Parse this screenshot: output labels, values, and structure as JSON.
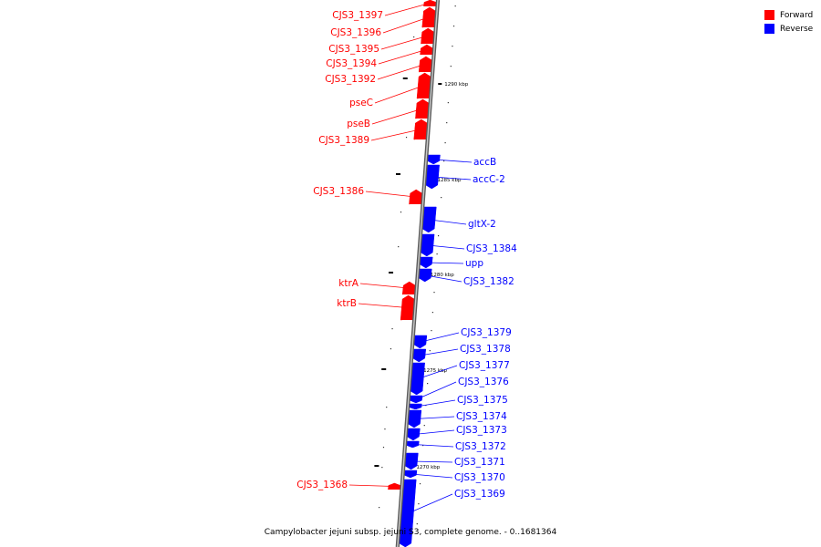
{
  "colors": {
    "forward": "#ff0000",
    "reverse": "#0000ff",
    "backbone": "#888888",
    "tick": "#000000"
  },
  "legend": {
    "forward_label": "Forward",
    "reverse_label": "Reverse"
  },
  "caption": "Campylobacter jejuni subsp. jejuni S3, complete genome. - 0..1681364",
  "scale_labels": [
    "1290 kbp",
    "1285 kbp",
    "1280 kbp",
    "1275 kbp",
    "1270 kbp"
  ],
  "genes": [
    {
      "label": "CJS3_1397",
      "strand": "forward"
    },
    {
      "label": "CJS3_1396",
      "strand": "forward"
    },
    {
      "label": "CJS3_1395",
      "strand": "forward"
    },
    {
      "label": "CJS3_1394",
      "strand": "forward"
    },
    {
      "label": "CJS3_1392",
      "strand": "forward"
    },
    {
      "label": "pseC",
      "strand": "forward"
    },
    {
      "label": "pseB",
      "strand": "forward"
    },
    {
      "label": "CJS3_1389",
      "strand": "forward"
    },
    {
      "label": "accB",
      "strand": "reverse"
    },
    {
      "label": "accC-2",
      "strand": "reverse"
    },
    {
      "label": "CJS3_1386",
      "strand": "forward"
    },
    {
      "label": "gltX-2",
      "strand": "reverse"
    },
    {
      "label": "CJS3_1384",
      "strand": "reverse"
    },
    {
      "label": "upp",
      "strand": "reverse"
    },
    {
      "label": "CJS3_1382",
      "strand": "reverse"
    },
    {
      "label": "ktrA",
      "strand": "forward"
    },
    {
      "label": "ktrB",
      "strand": "forward"
    },
    {
      "label": "CJS3_1379",
      "strand": "reverse"
    },
    {
      "label": "CJS3_1378",
      "strand": "reverse"
    },
    {
      "label": "CJS3_1377",
      "strand": "reverse"
    },
    {
      "label": "CJS3_1376",
      "strand": "reverse"
    },
    {
      "label": "CJS3_1375",
      "strand": "reverse"
    },
    {
      "label": "CJS3_1374",
      "strand": "reverse"
    },
    {
      "label": "CJS3_1373",
      "strand": "reverse"
    },
    {
      "label": "CJS3_1372",
      "strand": "reverse"
    },
    {
      "label": "CJS3_1371",
      "strand": "reverse"
    },
    {
      "label": "CJS3_1370",
      "strand": "reverse"
    },
    {
      "label": "CJS3_1369",
      "strand": "reverse"
    },
    {
      "label": "CJS3_1368",
      "strand": "forward"
    }
  ]
}
